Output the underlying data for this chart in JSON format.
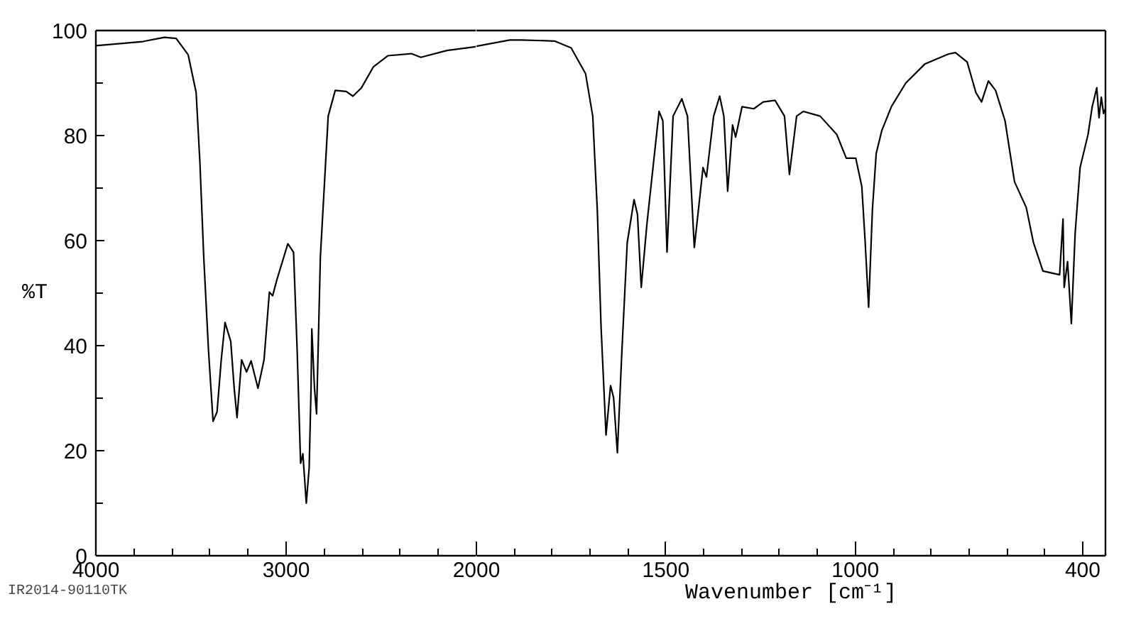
{
  "chart_data": [
    {
      "type": "line",
      "ylabel": "%T",
      "annotations": [
        "IR2014-90110TK"
      ],
      "xlim": [
        4000,
        2000
      ],
      "ylim": [
        0,
        100
      ],
      "xticks": [
        4000,
        3000
      ],
      "yticks": [
        0,
        20,
        40,
        60,
        80,
        100
      ],
      "grid": false,
      "line_style": "solid",
      "series": [
        {
          "color": "#000000",
          "x": [
            4000,
            3753,
            3640,
            3578,
            3515,
            3473,
            3453,
            3433,
            3408,
            3384,
            3363,
            3341,
            3321,
            3291,
            3273,
            3258,
            3234,
            3208,
            3184,
            3148,
            3116,
            3088,
            3071,
            3049,
            2991,
            2961,
            2942,
            2924,
            2912,
            2894,
            2879,
            2869,
            2865,
            2851,
            2840,
            2820,
            2779,
            2742,
            2684,
            2649,
            2604,
            2541,
            2466,
            2342,
            2292,
            2155,
            2005,
            2000
          ],
          "values": [
            97.1,
            97.9,
            98.7,
            98.5,
            95.4,
            88.2,
            74.8,
            56.9,
            39.1,
            25.6,
            27.4,
            37.3,
            44.4,
            40.8,
            31.9,
            26.3,
            37.3,
            35.0,
            37.1,
            31.9,
            37.3,
            50.2,
            49.5,
            52.5,
            59.4,
            57.8,
            39.1,
            17.6,
            19.4,
            10.0,
            16.7,
            31.9,
            43.2,
            31.9,
            27.0,
            56.9,
            83.7,
            88.6,
            88.4,
            87.5,
            89.1,
            93.1,
            95.2,
            95.6,
            94.9,
            96.2,
            96.9,
            97.0
          ]
        }
      ]
    },
    {
      "type": "line",
      "xlabel": "Wavenumber [cm⁻¹]",
      "xlim": [
        2000,
        340
      ],
      "ylim": [
        0,
        100
      ],
      "xticks": [
        2000,
        1500,
        1000,
        400
      ],
      "tick_labels": "x",
      "grid": false,
      "line_style": "solid",
      "series": [
        {
          "color": "#000000",
          "x": [
            2000,
            1912,
            1881,
            1794,
            1750,
            1712,
            1693,
            1681,
            1671,
            1658,
            1646,
            1638,
            1628,
            1616,
            1602,
            1584,
            1575,
            1565,
            1550,
            1518,
            1508,
            1497,
            1481,
            1458,
            1443,
            1425,
            1402,
            1393,
            1374,
            1358,
            1347,
            1337,
            1324,
            1316,
            1299,
            1268,
            1243,
            1212,
            1187,
            1174,
            1155,
            1137,
            1093,
            1049,
            1024,
            999,
            983,
            974,
            965,
            955,
            945,
            930,
            905,
            867,
            817,
            755,
            736,
            705,
            682,
            667,
            649,
            630,
            605,
            580,
            549,
            530,
            505,
            461,
            452,
            449,
            440,
            430,
            420,
            407,
            386,
            375,
            363,
            357,
            351,
            345,
            340
          ],
          "values": [
            97.0,
            98.2,
            98.2,
            98.0,
            96.7,
            91.8,
            83.7,
            65.9,
            43.5,
            23.0,
            32.4,
            30.1,
            19.6,
            39.1,
            59.6,
            67.8,
            65.0,
            51.1,
            63.2,
            84.6,
            82.8,
            57.8,
            83.7,
            87.0,
            83.7,
            58.7,
            73.9,
            72.1,
            83.7,
            87.5,
            83.7,
            69.4,
            82.0,
            79.7,
            85.5,
            85.1,
            86.4,
            86.7,
            83.7,
            72.6,
            83.7,
            84.6,
            83.7,
            80.2,
            75.7,
            75.7,
            70.3,
            59.6,
            47.3,
            65.9,
            76.6,
            81.0,
            85.5,
            90.0,
            93.6,
            95.5,
            95.8,
            94.0,
            88.2,
            86.4,
            90.4,
            88.6,
            82.8,
            71.2,
            66.3,
            59.6,
            54.2,
            53.5,
            64.1,
            51.1,
            56.0,
            44.2,
            61.4,
            73.9,
            80.2,
            85.5,
            89.1,
            83.4,
            87.3,
            84.2,
            85.1
          ]
        }
      ]
    }
  ]
}
